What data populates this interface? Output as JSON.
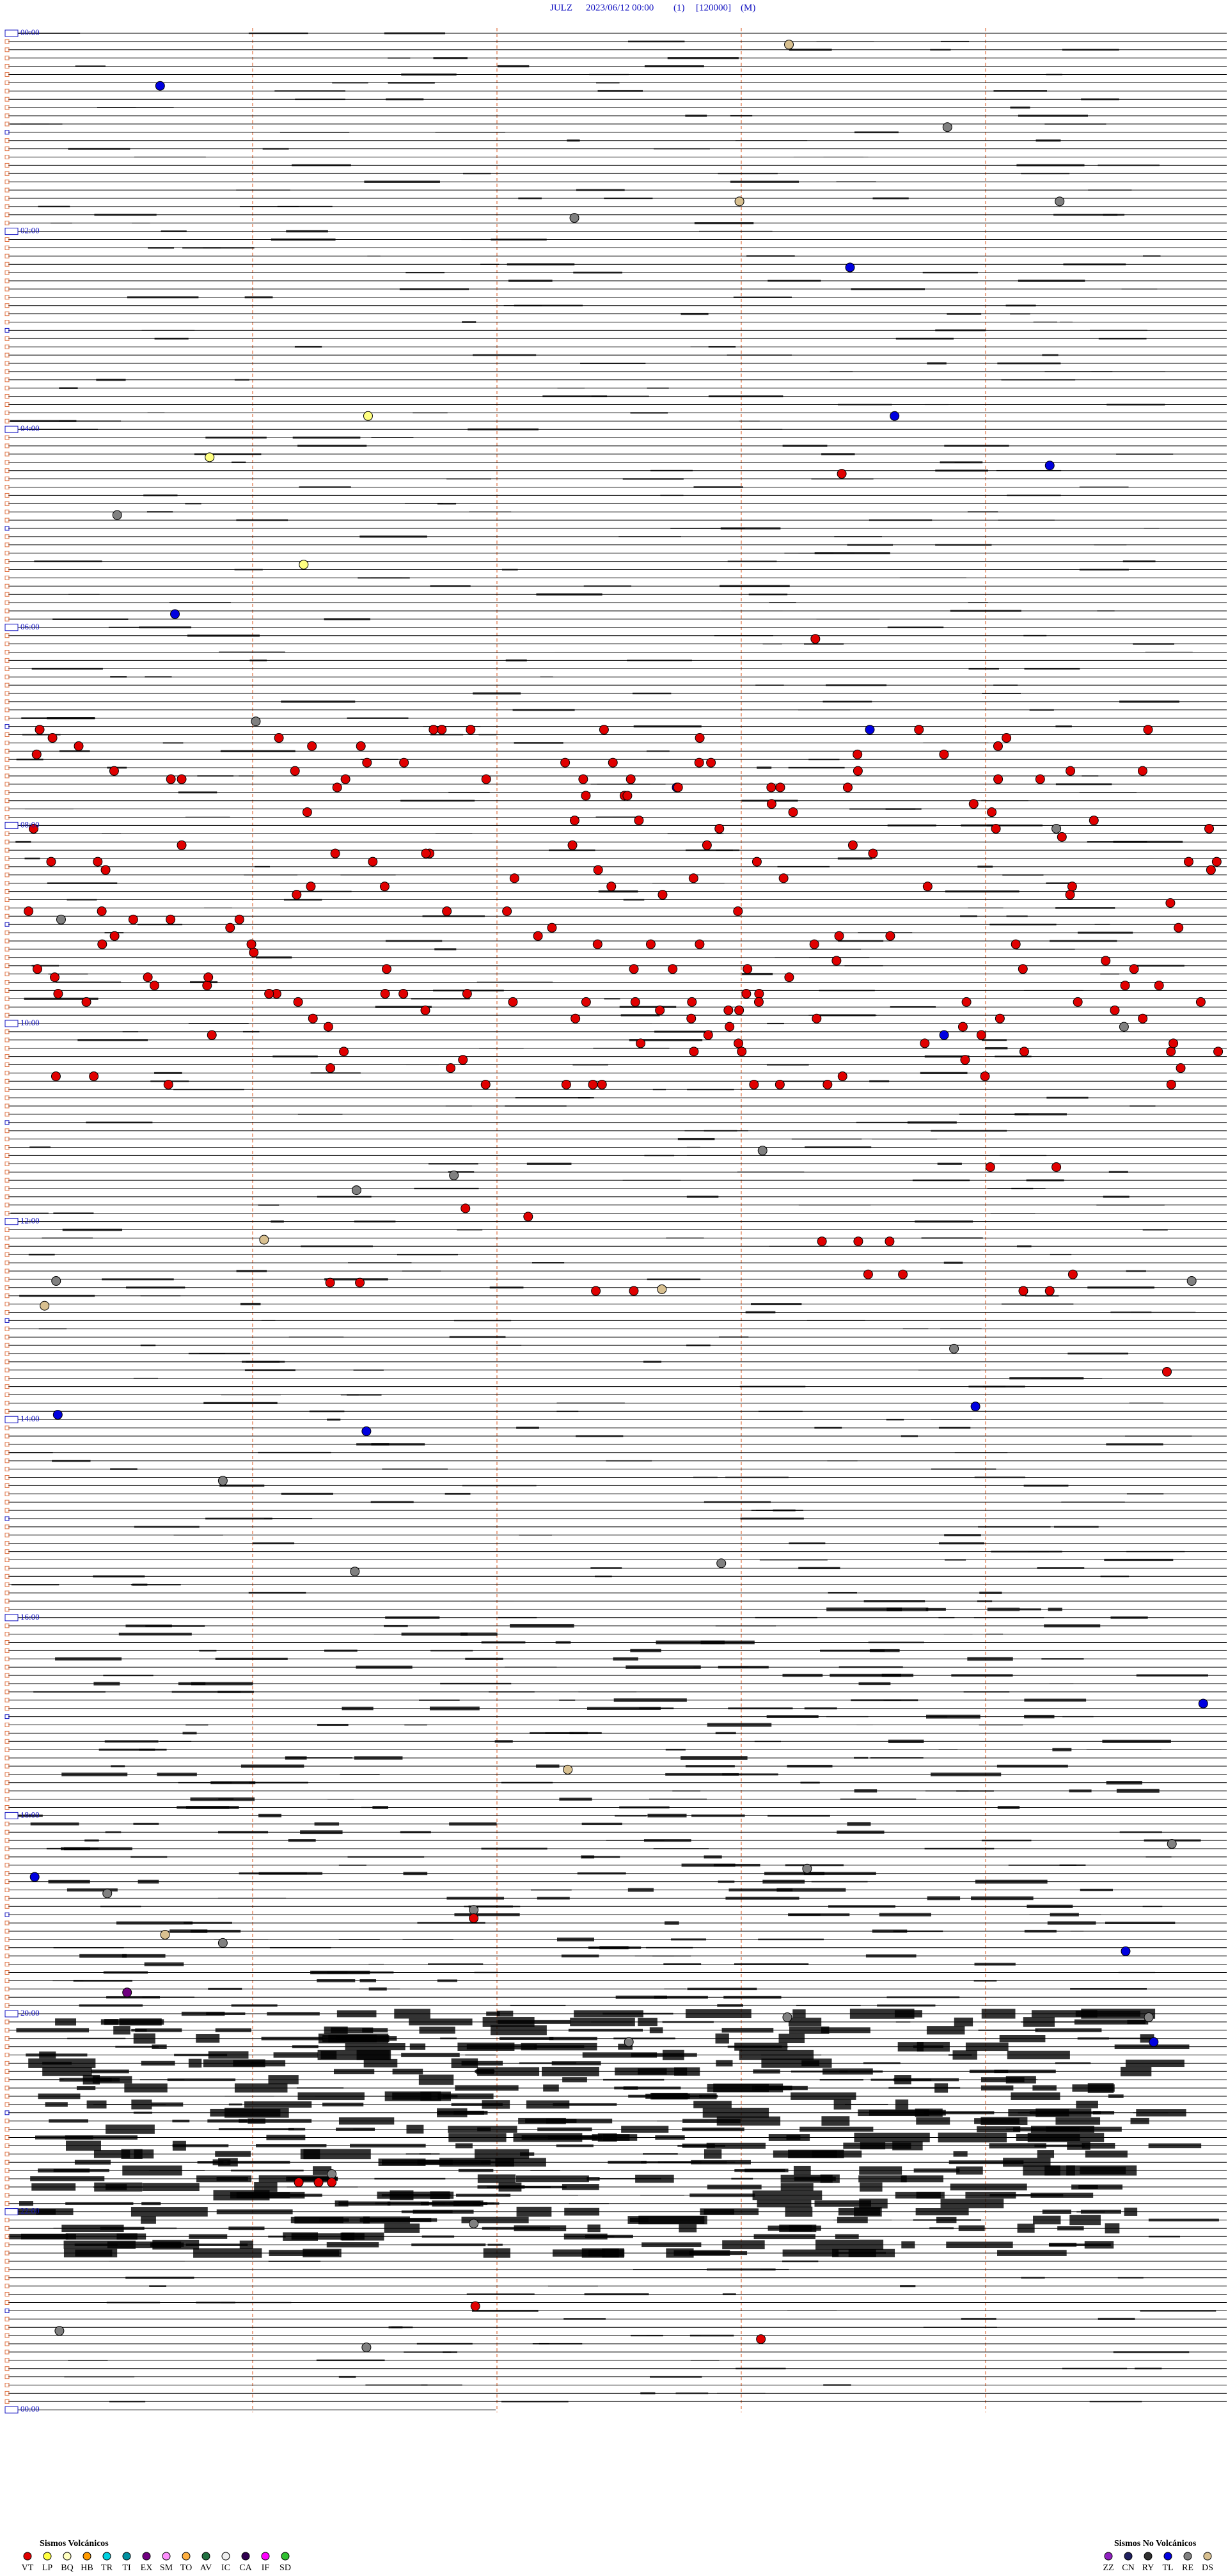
{
  "header": {
    "station": "JULZ",
    "datetime": "2023/06/12 00:00",
    "channel": "(1)",
    "scale": "[120000]",
    "mode": "(M)"
  },
  "time_labels": [
    "00:00",
    "02:00",
    "04:00",
    "06:00",
    "08:00",
    "10:00",
    "12:00",
    "14:00",
    "16:00",
    "18:00",
    "20:00",
    "22:00",
    "00:00"
  ],
  "legend": {
    "volcanic": {
      "title": "Sismos Volcánicos",
      "items": [
        {
          "code": "VT",
          "color": "#e00000"
        },
        {
          "code": "LP",
          "color": "#ffff40"
        },
        {
          "code": "BQ",
          "color": "#ffffc0"
        },
        {
          "code": "HB",
          "color": "#ff9a00"
        },
        {
          "code": "TR",
          "color": "#00d0e0"
        },
        {
          "code": "TI",
          "color": "#0090a0"
        },
        {
          "code": "EX",
          "color": "#700080"
        },
        {
          "code": "SM",
          "color": "#ff90ff"
        },
        {
          "code": "TO",
          "color": "#ffb040"
        },
        {
          "code": "AV",
          "color": "#207040"
        },
        {
          "code": "IC",
          "color": "#f0f0f0"
        },
        {
          "code": "CA",
          "color": "#300050"
        },
        {
          "code": "IF",
          "color": "#ff00ff"
        },
        {
          "code": "SD",
          "color": "#30c030"
        }
      ]
    },
    "non_volcanic": {
      "title": "Sismos No Volcánicos",
      "items": [
        {
          "code": "ZZ",
          "color": "#9020c0"
        },
        {
          "code": "CN",
          "color": "#202060"
        },
        {
          "code": "RY",
          "color": "#303030"
        },
        {
          "code": "TL",
          "color": "#0000e0"
        },
        {
          "code": "RE",
          "color": "#808080"
        },
        {
          "code": "DS",
          "color": "#d8c090"
        }
      ]
    }
  }
}
